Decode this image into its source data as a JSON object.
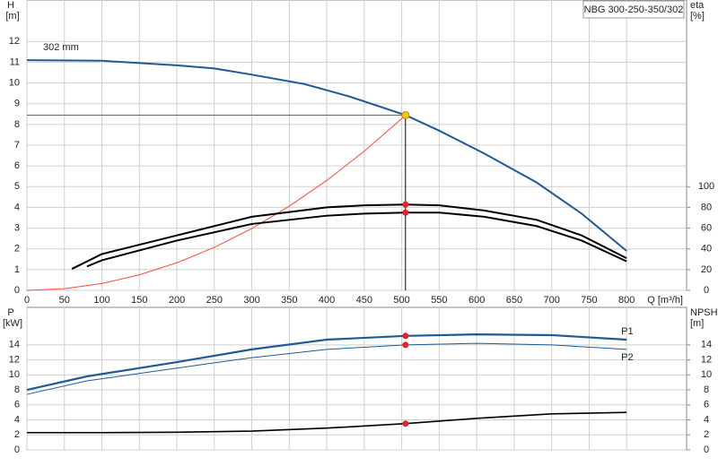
{
  "chart_data": [
    {
      "type": "line",
      "title": "NBG 300-250-350/302",
      "xlabel": "Q [m³/h]",
      "ylabel": "H",
      "yunit": "[m]",
      "y2label": "eta",
      "y2unit": "[%]",
      "xlim": [
        0,
        880
      ],
      "xticks": [
        0,
        50,
        100,
        150,
        200,
        250,
        300,
        350,
        400,
        450,
        500,
        550,
        600,
        650,
        700,
        750,
        800
      ],
      "ylim": [
        0,
        14
      ],
      "yticks": [
        0,
        1,
        2,
        3,
        4,
        5,
        6,
        7,
        8,
        9,
        10,
        11,
        12
      ],
      "y2lim": [
        0,
        280
      ],
      "y2ticks": [
        0,
        20,
        40,
        60,
        80,
        100
      ],
      "grid": true,
      "marker_color": "#e8202a",
      "series": [
        {
          "name": "302 mm",
          "color": "#1f5a96",
          "x": [
            0,
            100,
            200,
            250,
            300,
            370,
            430,
            505,
            550,
            610,
            680,
            740,
            800
          ],
          "values": [
            11.1,
            11.07,
            10.85,
            10.7,
            10.4,
            9.95,
            9.35,
            8.45,
            7.7,
            6.6,
            5.2,
            3.7,
            1.9
          ]
        },
        {
          "color": "#ff4a3a",
          "x": [
            0,
            50,
            100,
            150,
            200,
            250,
            300,
            350,
            400,
            450,
            500,
            505
          ],
          "values": [
            0,
            0.08,
            0.33,
            0.75,
            1.33,
            2.07,
            2.98,
            4.06,
            5.3,
            6.71,
            8.28,
            8.45
          ]
        },
        {
          "color": "#000000",
          "axis": "y2",
          "marker_at": 6,
          "x": [
            60,
            100,
            200,
            300,
            400,
            450,
            505,
            550,
            610,
            680,
            740,
            800
          ],
          "values": [
            20.7,
            35,
            53,
            71,
            80,
            82,
            82.7,
            82,
            77,
            68,
            53,
            31
          ]
        },
        {
          "color": "#000000",
          "axis": "y2",
          "marker_at": 6,
          "x": [
            80,
            100,
            200,
            300,
            400,
            450,
            505,
            550,
            610,
            680,
            740,
            800
          ],
          "values": [
            23,
            29,
            48,
            64,
            72,
            74,
            75,
            75,
            71,
            62,
            48,
            28
          ]
        }
      ],
      "operating_point": {
        "x": 505,
        "y": 8.45,
        "color": "#f5c518"
      }
    },
    {
      "type": "line",
      "ylabel": "P",
      "yunit": "[kW]",
      "y2label": "NPSH",
      "y2unit": "[m]",
      "xlim": [
        0,
        880
      ],
      "xticks": [
        0,
        50,
        100,
        150,
        200,
        250,
        300,
        350,
        400,
        450,
        500,
        550,
        600,
        650,
        700,
        750,
        800
      ],
      "ylim": [
        0,
        19
      ],
      "yticks": [
        0,
        2,
        4,
        6,
        8,
        10,
        12,
        14
      ],
      "y2lim": [
        0,
        19
      ],
      "y2ticks": [
        0,
        2,
        4,
        6,
        8,
        10,
        12,
        14
      ],
      "grid": true,
      "marker_color": "#e8202a",
      "series": [
        {
          "name": "P1",
          "color": "#1f5a96",
          "width": 2.2,
          "marker_at": 5,
          "x": [
            0,
            80,
            200,
            300,
            400,
            505,
            600,
            700,
            800
          ],
          "values": [
            8.0,
            9.8,
            11.7,
            13.4,
            14.7,
            15.2,
            15.4,
            15.3,
            14.7
          ]
        },
        {
          "name": "P2",
          "color": "#1f5a96",
          "width": 1,
          "marker_at": 5,
          "x": [
            0,
            80,
            200,
            300,
            400,
            505,
            600,
            700,
            800
          ],
          "values": [
            7.4,
            9.2,
            10.9,
            12.3,
            13.4,
            14.0,
            14.2,
            14.0,
            13.4
          ]
        },
        {
          "color": "#000000",
          "width": 1.6,
          "axis": "y2",
          "marker_at": 5,
          "x": [
            0,
            100,
            200,
            300,
            400,
            505,
            600,
            700,
            800
          ],
          "values": [
            2.3,
            2.3,
            2.35,
            2.5,
            2.9,
            3.5,
            4.2,
            4.8,
            5.0
          ]
        }
      ]
    }
  ]
}
